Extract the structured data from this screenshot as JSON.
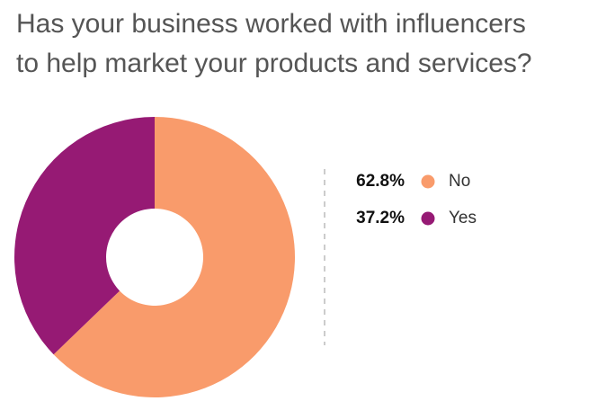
{
  "chart_data": {
    "type": "donut",
    "title": [
      "Has your business worked with influencers",
      "to help market your products and services?"
    ],
    "categories": [
      "No",
      "Yes"
    ],
    "values": [
      62.8,
      37.2
    ],
    "value_labels": [
      "62.8%",
      "37.2%"
    ],
    "colors": [
      "#f99b6b",
      "#961a74"
    ]
  }
}
